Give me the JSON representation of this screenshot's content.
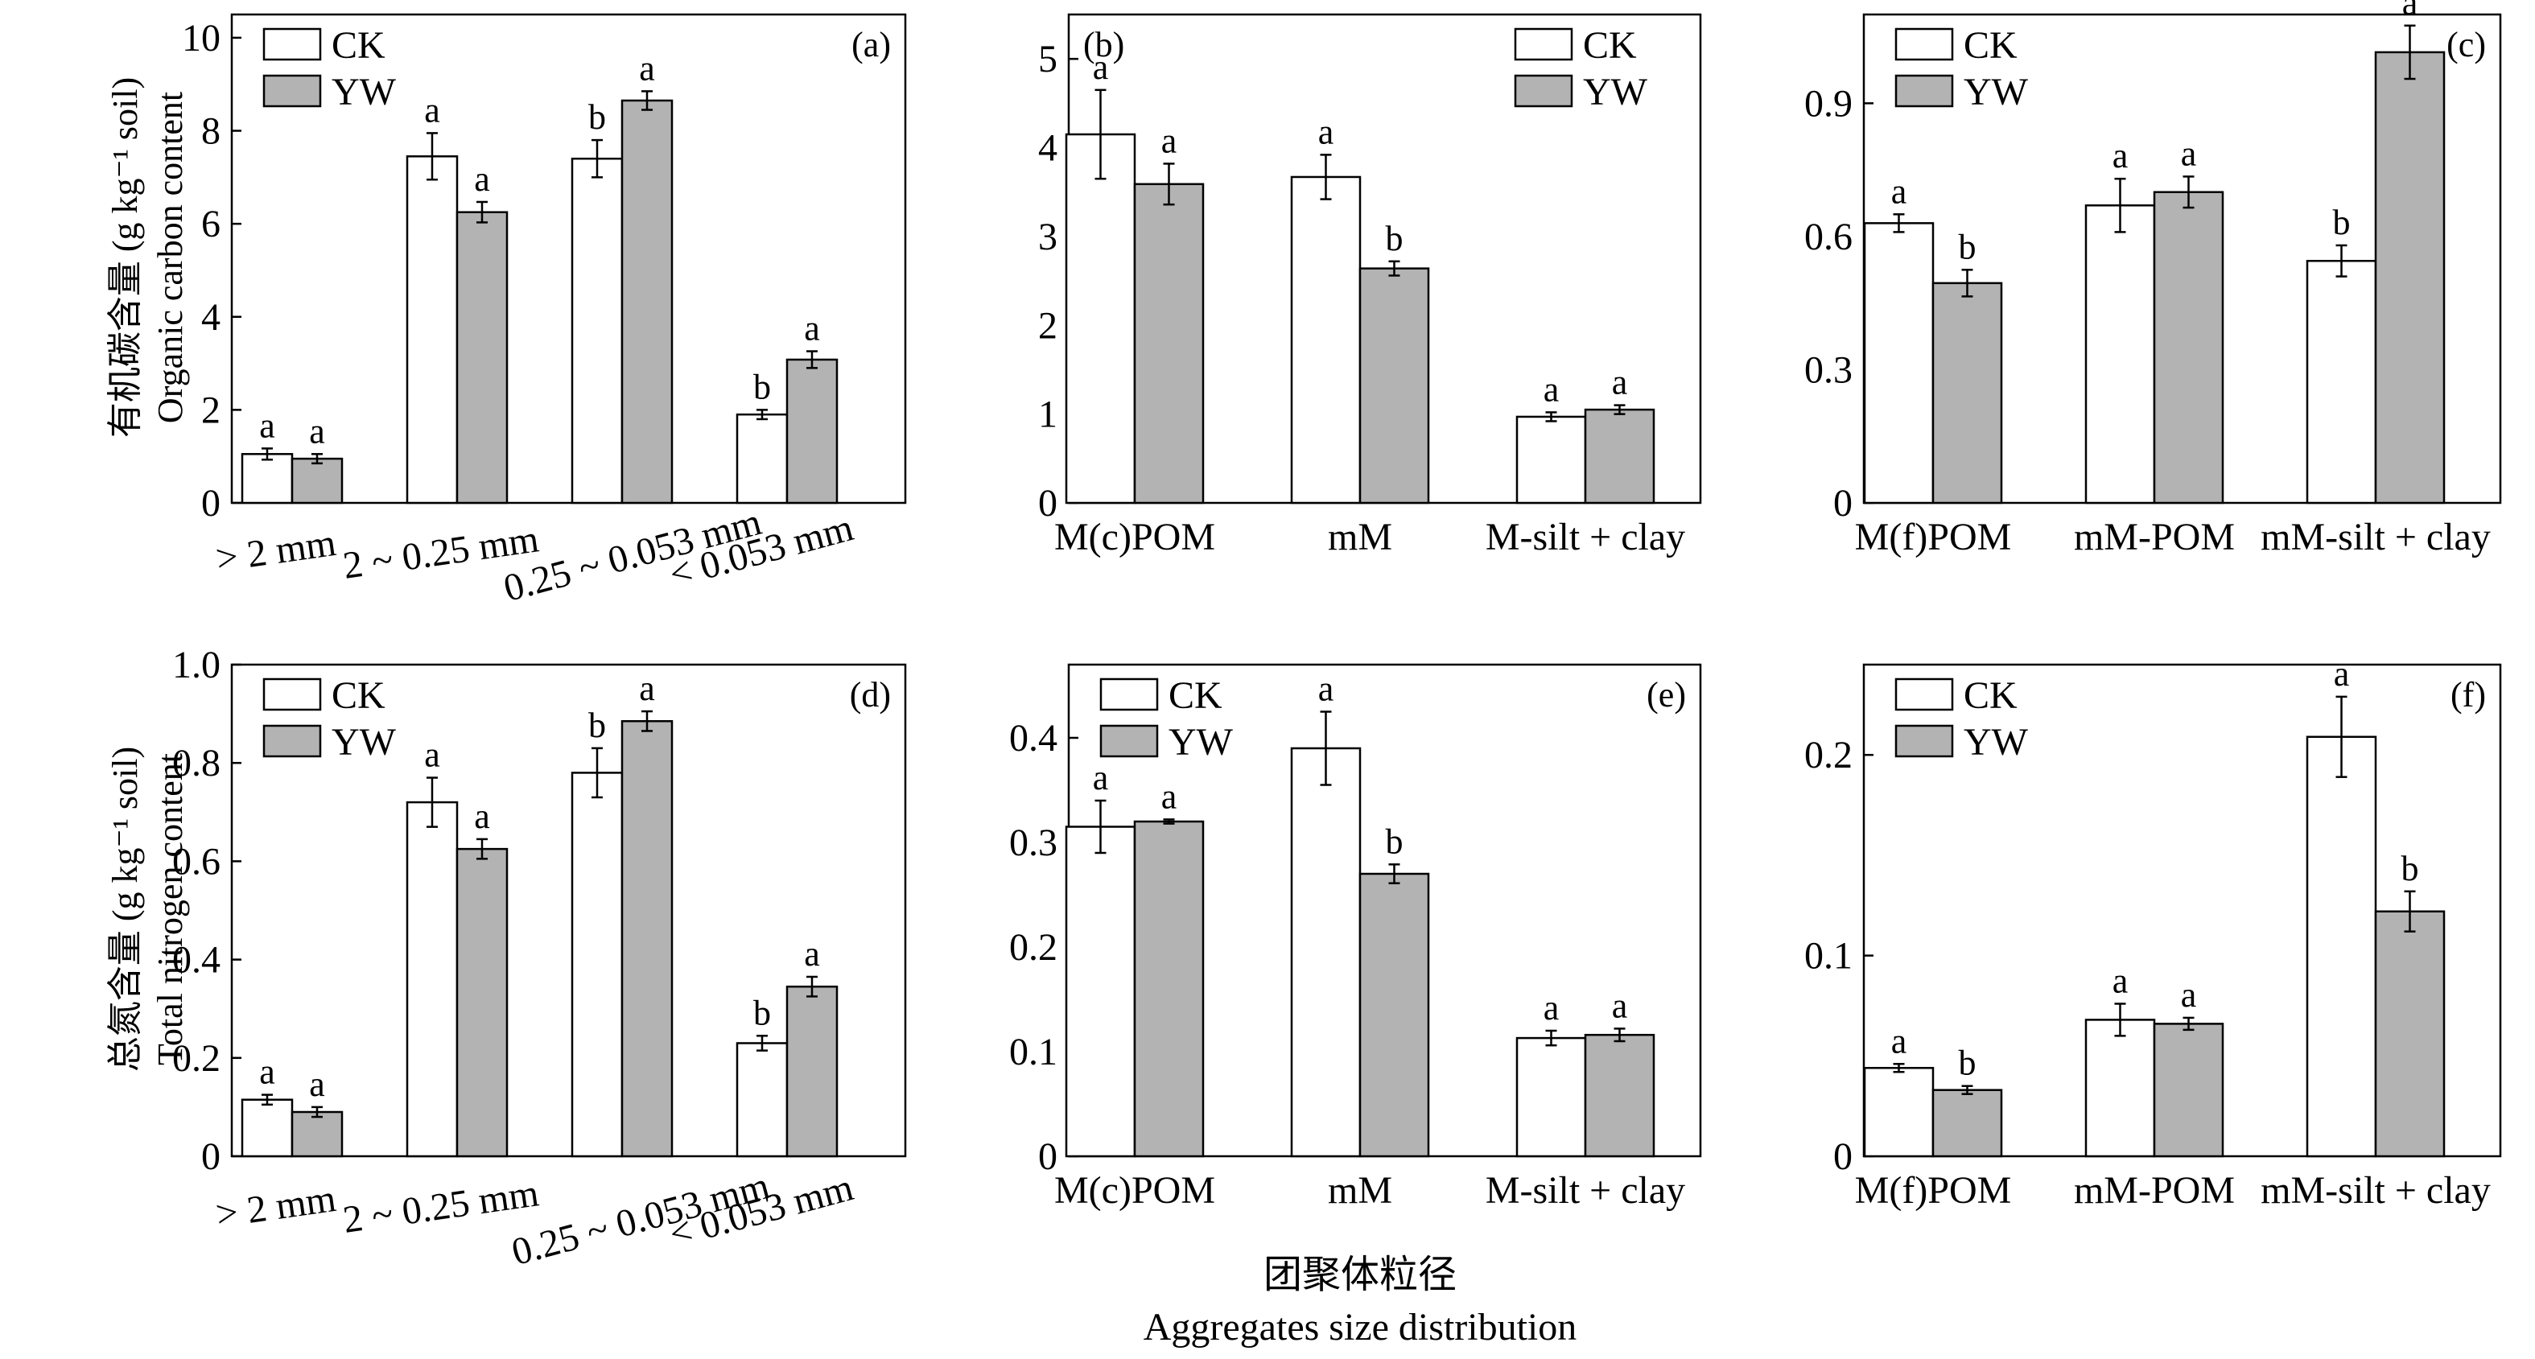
{
  "figure": {
    "x_title_cn": "团聚体粒径",
    "x_title_en": "Aggregates size distribution",
    "row_labels": [
      {
        "cn": "有机碳含量",
        "unit": "(g kg⁻¹ soil)",
        "en": "Organic carbon content"
      },
      {
        "cn": "总氮含量",
        "unit": "(g kg⁻¹ soil)",
        "en": "Total nitrogen content"
      }
    ]
  },
  "colors": {
    "CK": "#ffffff",
    "YW": "#b3b3b3",
    "stroke": "#000000"
  },
  "chart_data": [
    {
      "type": "bar",
      "panel": "(a)",
      "legend": "top-left",
      "categories": [
        "> 2 mm",
        "2 ~ 0.25 mm",
        "0.25 ~ 0.053 mm",
        "< 0.053 mm"
      ],
      "series": [
        {
          "name": "CK",
          "values": [
            1.05,
            7.45,
            7.4,
            1.9
          ],
          "errors": [
            0.12,
            0.5,
            0.4,
            0.1
          ],
          "letters": [
            "a",
            "a",
            "b",
            "b"
          ]
        },
        {
          "name": "YW",
          "values": [
            0.95,
            6.25,
            8.65,
            3.08
          ],
          "errors": [
            0.1,
            0.22,
            0.2,
            0.18
          ],
          "letters": [
            "a",
            "a",
            "a",
            "a"
          ]
        }
      ],
      "ylim": [
        0,
        10.5
      ],
      "yticks": [
        "0",
        "2",
        "4",
        "6",
        "8",
        "10"
      ],
      "ytick_values": [
        0,
        2,
        4,
        6,
        8,
        10
      ]
    },
    {
      "type": "bar",
      "panel": "(b)",
      "legend": "top-right",
      "categories": [
        "M(c)POM",
        "mM",
        "M-silt + clay"
      ],
      "series": [
        {
          "name": "CK",
          "values": [
            4.15,
            3.67,
            0.97
          ],
          "errors": [
            0.5,
            0.25,
            0.05
          ],
          "letters": [
            "a",
            "a",
            "a"
          ]
        },
        {
          "name": "YW",
          "values": [
            3.59,
            2.64,
            1.05
          ],
          "errors": [
            0.23,
            0.08,
            0.05
          ],
          "letters": [
            "a",
            "b",
            "a"
          ]
        }
      ],
      "ylim": [
        0,
        5.5
      ],
      "yticks": [
        "0",
        "1",
        "2",
        "3",
        "4",
        "5"
      ],
      "ytick_values": [
        0,
        1,
        2,
        3,
        4,
        5
      ]
    },
    {
      "type": "bar",
      "panel": "(c)",
      "legend": "top-left",
      "categories": [
        "M(f)POM",
        "mM-POM",
        "mM-silt + clay"
      ],
      "series": [
        {
          "name": "CK",
          "values": [
            0.63,
            0.67,
            0.545
          ],
          "errors": [
            0.02,
            0.06,
            0.035
          ],
          "letters": [
            "a",
            "a",
            "b"
          ]
        },
        {
          "name": "YW",
          "values": [
            0.495,
            0.7,
            1.015
          ],
          "errors": [
            0.03,
            0.035,
            0.06
          ],
          "letters": [
            "b",
            "a",
            "a"
          ]
        }
      ],
      "ylim": [
        0,
        1.1
      ],
      "yticks": [
        "0",
        "0.3",
        "0.6",
        "0.9"
      ],
      "ytick_values": [
        0,
        0.3,
        0.6,
        0.9
      ]
    },
    {
      "type": "bar",
      "panel": "(d)",
      "legend": "top-left",
      "categories": [
        "> 2 mm",
        "2 ~ 0.25 mm",
        "0.25 ~ 0.053 mm",
        "< 0.053 mm"
      ],
      "series": [
        {
          "name": "CK",
          "values": [
            0.115,
            0.72,
            0.78,
            0.23
          ],
          "errors": [
            0.01,
            0.05,
            0.05,
            0.015
          ],
          "letters": [
            "a",
            "a",
            "b",
            "b"
          ]
        },
        {
          "name": "YW",
          "values": [
            0.09,
            0.625,
            0.885,
            0.345
          ],
          "errors": [
            0.01,
            0.02,
            0.02,
            0.02
          ],
          "letters": [
            "a",
            "a",
            "a",
            "a"
          ]
        }
      ],
      "ylim": [
        0,
        1.0
      ],
      "yticks": [
        "0",
        "0.2",
        "0.4",
        "0.6",
        "0.8",
        "1.0"
      ],
      "ytick_values": [
        0,
        0.2,
        0.4,
        0.6,
        0.8,
        1.0
      ]
    },
    {
      "type": "bar",
      "panel": "(e)",
      "legend": "top-left",
      "categories": [
        "M(c)POM",
        "mM",
        "M-silt + clay"
      ],
      "series": [
        {
          "name": "CK",
          "values": [
            0.315,
            0.39,
            0.113
          ],
          "errors": [
            0.025,
            0.035,
            0.007
          ],
          "letters": [
            "a",
            "a",
            "a"
          ]
        },
        {
          "name": "YW",
          "values": [
            0.32,
            0.27,
            0.116
          ],
          "errors": [
            0.002,
            0.009,
            0.006
          ],
          "letters": [
            "a",
            "b",
            "a"
          ]
        }
      ],
      "ylim": [
        0,
        0.47
      ],
      "yticks": [
        "0",
        "0.1",
        "0.2",
        "0.3",
        "0.4"
      ],
      "ytick_values": [
        0,
        0.1,
        0.2,
        0.3,
        0.4
      ]
    },
    {
      "type": "bar",
      "panel": "(f)",
      "legend": "top-left",
      "categories": [
        "M(f)POM",
        "mM-POM",
        "mM-silt + clay"
      ],
      "series": [
        {
          "name": "CK",
          "values": [
            0.044,
            0.068,
            0.209
          ],
          "errors": [
            0.002,
            0.008,
            0.02
          ],
          "letters": [
            "a",
            "a",
            "a"
          ]
        },
        {
          "name": "YW",
          "values": [
            0.033,
            0.066,
            0.122
          ],
          "errors": [
            0.002,
            0.003,
            0.01
          ],
          "letters": [
            "b",
            "a",
            "b"
          ]
        }
      ],
      "ylim": [
        0,
        0.245
      ],
      "yticks": [
        "0",
        "0.1",
        "0.2"
      ],
      "ytick_values": [
        0,
        0.1,
        0.2
      ]
    }
  ]
}
